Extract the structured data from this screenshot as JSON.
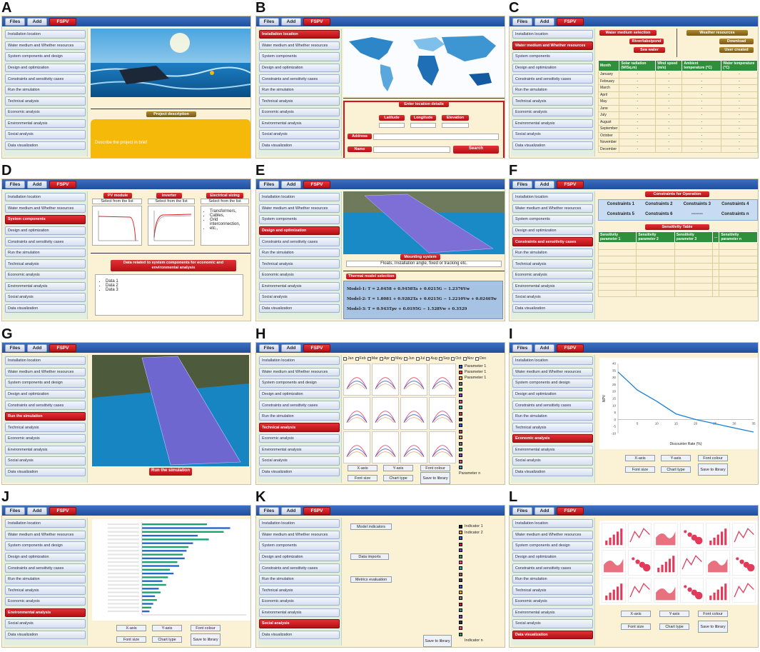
{
  "menu": {
    "files": "Files",
    "add": "Add",
    "fspv": "FSPV"
  },
  "panels": {
    "A": {
      "label": "A",
      "sidebar": [
        "Installation location",
        "Water medium and Whether resources",
        "System components and design",
        "Design and optimization",
        "Constraints and sensitivity cases",
        "Run the simulation",
        "Technical analysis",
        "Economic analysis",
        "Environmental analysis",
        "Social analysis",
        "Data visualization"
      ],
      "active": -1,
      "project_title": "Project description",
      "project_placeholder": "Describe the project in brief"
    },
    "B": {
      "label": "B",
      "sidebar": [
        "Installation location",
        "Water medium and Whether resources",
        "System components",
        "Design and optimization",
        "Constraints and sensitivity cases",
        "Run the simulation",
        "Technical analysis",
        "Economic analysis",
        "Environmental analysis",
        "Social analysis",
        "Data visualization"
      ],
      "active": 0,
      "enter_title": "Enter location details",
      "latitude": "Latitude",
      "longitude": "Longitude",
      "elevation": "Elevation",
      "address": "Address",
      "name": "Name",
      "search": "Search"
    },
    "C": {
      "label": "C",
      "sidebar": [
        "Installation location",
        "Water medium and Whether resources",
        "System components",
        "Design and optimization",
        "Constraints and sensitivity cases",
        "Run the simulation",
        "Technical analysis",
        "Economic analysis",
        "Environmental analysis",
        "Social analysis",
        "Data visualization"
      ],
      "active": 1,
      "water_sel": "Water medium selection",
      "river": "River/lake/pond",
      "sea": "Sea water",
      "weather": "Weather resources",
      "download": "Download",
      "user_created": "User created",
      "headers": [
        "Month",
        "Solar radiation (W/Sq.m)",
        "Wind speed (m/s)",
        "Ambient temperature (°C)",
        "Water temperature (°C)"
      ],
      "months": [
        "January",
        "February",
        "March",
        "April",
        "May",
        "June",
        "July",
        "August",
        "September",
        "October",
        "November",
        "December"
      ],
      "dash": "-"
    },
    "D": {
      "label": "D",
      "sidebar": [
        "Installation location",
        "Water medium and Whether resources",
        "System components",
        "Design and optimization",
        "Constraints and sensitivity cases",
        "Run the simulation",
        "Technical analysis",
        "Economic analysis",
        "Environmental analysis",
        "Social analysis",
        "Data visualization"
      ],
      "active": 2,
      "pv": "PV module",
      "inverter": "Inverter",
      "elec": "Electrical sizing",
      "select": "Select from the list",
      "elec_items": [
        "Transformers,",
        "Cables,",
        "Grid interconnection,",
        "etc.,"
      ],
      "data_title": "Data related to system components for economic and environmental analysis",
      "data_items": [
        "Data 1",
        "Data 2",
        "Data 3"
      ]
    },
    "E": {
      "label": "E",
      "sidebar": [
        "Installation location",
        "Water medium and Whether resources",
        "System components",
        "Design and optimization",
        "Constraints and sensitivity cases",
        "Run the simulation",
        "Technical analysis",
        "Economic analysis",
        "Environmental analysis",
        "Social analysis",
        "Data visualization"
      ],
      "active": 3,
      "mounting": "Mounting system",
      "mounting_desc": "Floats, Installation angle, fixed or tracking etc.",
      "thermal": "Thermal model selection",
      "models": [
        "Model-1: T = 2.0458 + 0.9458Ta + 0.0215G − 1.2376Vw",
        "Model-2: T = 1.8081 + 0.9282Ta + 0.0215G − 1.2210Vw + 0.0246Tw",
        "Model-3: T = 0.943Tpv + 0.0195G − 1.528Vw + 0.3529"
      ]
    },
    "F": {
      "label": "F",
      "sidebar": [
        "Installation location",
        "Water medium and Whether resources",
        "System components",
        "Design and optimization",
        "Constraints and sensitivity cases",
        "Run the simulation",
        "Technical analysis",
        "Economic analysis",
        "Environmental analysis",
        "Social analysis",
        "Data visualization"
      ],
      "active": 4,
      "constraints_title": "Constraints for Operation",
      "constraints": [
        "Constraints 1",
        "Constraints 2",
        "Constraints 3",
        "Constraints 4",
        "Constraints 5",
        "Constraints 6",
        "--------",
        "Constraints n"
      ],
      "sens_title": "Sensitivity Table",
      "sens_headers": [
        "Sensitivity parameter 1",
        "Sensitivity parameter 2",
        "Sensitivity parameter 3",
        "...",
        "Sensitivity parameter n"
      ]
    },
    "G": {
      "label": "G",
      "sidebar": [
        "Installation location",
        "Water medium and Whether resources",
        "System components and design",
        "Design and optimization",
        "Constraints and sensitivity cases",
        "Run the simulation",
        "Technical analysis",
        "Economic analysis",
        "Environmental analysis",
        "Social analysis",
        "Data visualization"
      ],
      "active": 5,
      "run": "Run the simulation"
    },
    "H": {
      "label": "H",
      "sidebar": [
        "Installation location",
        "Water medium and Whether resources",
        "System components and design",
        "Design and optimization",
        "Constraints and sensitivity cases",
        "Run the simulation",
        "Technical analysis",
        "Economic analysis",
        "Environmental analysis",
        "Social analysis",
        "Data visualization"
      ],
      "active": 6,
      "months": [
        "Jan",
        "Feb",
        "Mar",
        "Apr",
        "May",
        "Jun",
        "Jul",
        "Aug",
        "Sep",
        "Oct",
        "Nov",
        "Dec"
      ],
      "params": [
        "Parameter 1",
        "Parameter 1",
        "Parameter 1"
      ],
      "param_n": "Parameter n",
      "xaxis": "X-axis",
      "yaxis": "Y-axis",
      "fontcolour": "Font colour",
      "fontsize": "Font size",
      "charttype": "Chart type",
      "save": "Save to library"
    },
    "I": {
      "label": "I",
      "sidebar": [
        "Installation location",
        "Water medium and Whether resources",
        "System components and design",
        "Design and optimization",
        "Constraints and sensitivity cases",
        "Run the simulation",
        "Technical analysis",
        "Economic analysis",
        "Environmental analysis",
        "Social analysis",
        "Data visualization"
      ],
      "active": 7,
      "xlabel": "Discounter Rate (%)",
      "ylabel": "NPV",
      "xaxis": "X-axis",
      "yaxis": "Y-axis",
      "fontcolour": "Font colour",
      "fontsize": "Font size",
      "charttype": "Chart type",
      "save": "Save to library"
    },
    "J": {
      "label": "J",
      "sidebar": [
        "Installation location",
        "Water medium and Whether resources",
        "System components and design",
        "Design and optimization",
        "Constraints and sensitivity cases",
        "Run the simulation",
        "Technical analysis",
        "Economic analysis",
        "Environmental analysis",
        "Social analysis",
        "Data visualization"
      ],
      "active": 8,
      "xaxis": "X-axis",
      "yaxis": "Y-axis",
      "fontcolour": "Font colour",
      "fontsize": "Font size",
      "charttype": "Chart type",
      "save": "Save to library"
    },
    "K": {
      "label": "K",
      "sidebar": [
        "Installation location",
        "Water medium and Whether resources",
        "System components",
        "Design and optimization",
        "Constraints and sensitivity cases",
        "Run the simulation",
        "Technical analysis",
        "Economic analysis",
        "Environmental analysis",
        "Social analysis",
        "Data visualization"
      ],
      "active": 9,
      "model_ind": "Model indicators",
      "data_imp": "Data imports",
      "metrics": "Metrics evaluation",
      "ind1": "Indicator 1",
      "ind2": "Indicator 2",
      "indn": "Indicator n",
      "save": "Save to library"
    },
    "L": {
      "label": "L",
      "sidebar": [
        "Installation location",
        "Water medium and Whether resources",
        "System components and design",
        "Design and optimization",
        "Constraints and sensitivity cases",
        "Run the simulation",
        "Technical analysis",
        "Economic analysis",
        "Environmental analysis",
        "Social analysis",
        "Data visualization"
      ],
      "active": 10,
      "xaxis": "X-axis",
      "yaxis": "Y-axis",
      "fontcolour": "Font colour",
      "fontsize": "Font size",
      "charttype": "Chart type",
      "save": "Save to library"
    }
  },
  "chart_data": [
    {
      "type": "line",
      "panel": "I",
      "x": [
        0,
        5,
        10,
        15,
        20,
        25,
        30,
        35
      ],
      "values": [
        34,
        21,
        13,
        4,
        0,
        -3,
        -6,
        -9
      ],
      "xlabel": "Discounter Rate (%)",
      "ylabel": "NPV",
      "xlim": [
        0,
        35
      ],
      "ylim": [
        -10,
        40
      ],
      "xticks": [
        5,
        10,
        15,
        20,
        25,
        30,
        35
      ],
      "yticks": [
        -10,
        -5,
        0,
        5,
        10,
        15,
        20,
        25,
        30,
        35,
        40
      ]
    }
  ]
}
